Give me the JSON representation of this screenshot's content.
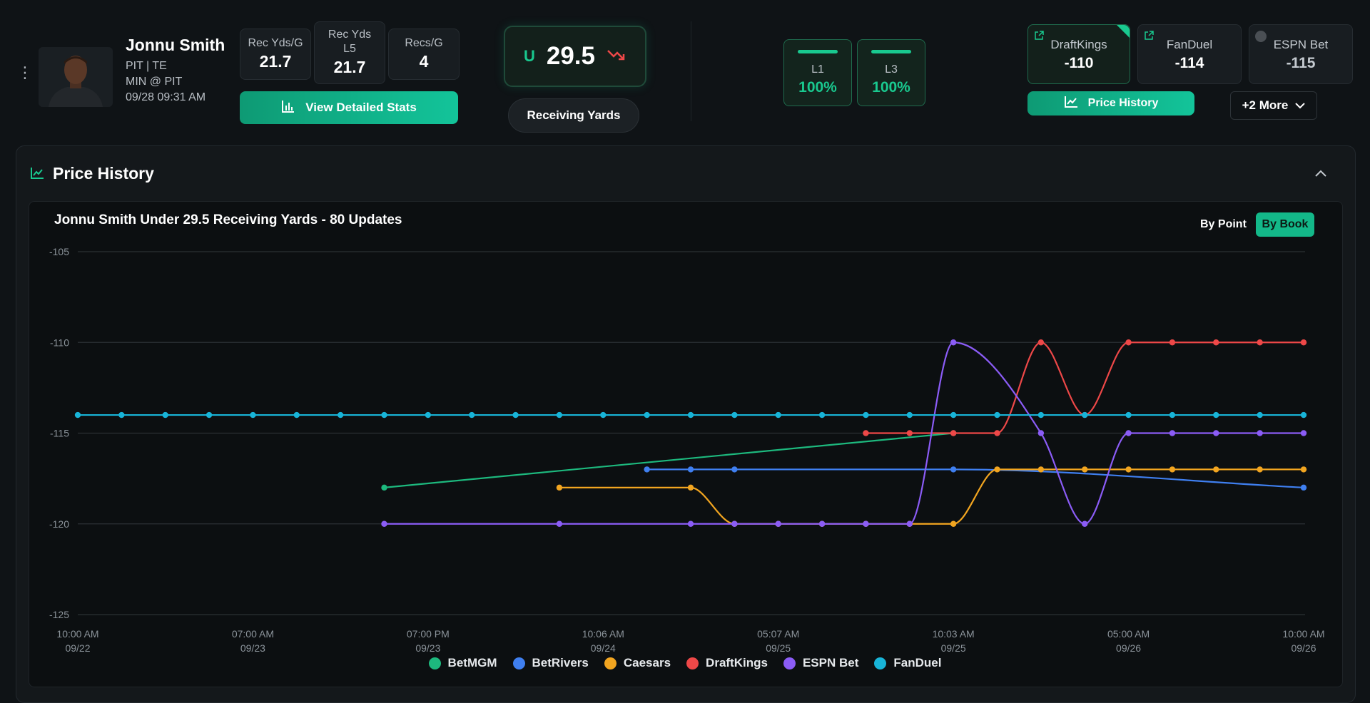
{
  "player": {
    "name": "Jonnu Smith",
    "team_pos": "PIT | TE",
    "matchup": "MIN @ PIT",
    "datetime": "09/28 09:31 AM"
  },
  "stats": [
    {
      "label_line1": "Rec Yds/G",
      "label_line2": "",
      "value": "21.7"
    },
    {
      "label_line1": "Rec Yds",
      "label_line2": "L5",
      "value": "21.7"
    },
    {
      "label_line1": "Recs/G",
      "label_line2": "",
      "value": "4"
    }
  ],
  "buttons": {
    "view_stats": "View Detailed Stats",
    "price_history": "Price History",
    "more": "+2 More"
  },
  "line": {
    "side": "U",
    "value": "29.5",
    "market": "Receiving Yards"
  },
  "hit_rates": [
    {
      "label": "L1",
      "value": "100%"
    },
    {
      "label": "L3",
      "value": "100%"
    }
  ],
  "books": [
    {
      "name": "DraftKings",
      "odds": "-110"
    },
    {
      "name": "FanDuel",
      "odds": "-114"
    },
    {
      "name": "ESPN Bet",
      "odds": "-115"
    }
  ],
  "panel": {
    "title": "Price History"
  },
  "toggle": {
    "by_point": "By Point",
    "by_book": "By Book"
  },
  "colors": {
    "accent": "#13c49a",
    "BetMGM": "#1db97e",
    "BetRivers": "#3f7ff0",
    "Caesars": "#f2a520",
    "DraftKings": "#ee4848",
    "ESPN Bet": "#8b5cf6",
    "FanDuel": "#18b4d8"
  },
  "icons": [
    "kebab-menu-icon",
    "bar-chart-icon",
    "line-chart-icon",
    "trend-down-icon",
    "external-link-icon",
    "chevron-down-icon",
    "chevron-up-icon"
  ],
  "chart_data": {
    "type": "line",
    "title": "Jonnu Smith Under 29.5 Receiving Yards - 80 Updates",
    "xlabel": "",
    "ylabel": "",
    "ylim": [
      -125,
      -105
    ],
    "yticks": [
      -105,
      -110,
      -115,
      -120,
      -125
    ],
    "x_ticks": [
      {
        "i": 0,
        "time": "10:00 AM",
        "date": "09/22"
      },
      {
        "i": 4,
        "time": "07:00 AM",
        "date": "09/23"
      },
      {
        "i": 8,
        "time": "07:00 PM",
        "date": "09/23"
      },
      {
        "i": 12,
        "time": "10:06 AM",
        "date": "09/24"
      },
      {
        "i": 16,
        "time": "05:07 AM",
        "date": "09/25"
      },
      {
        "i": 20,
        "time": "10:03 AM",
        "date": "09/25"
      },
      {
        "i": 24,
        "time": "05:00 AM",
        "date": "09/26"
      },
      {
        "i": 28,
        "time": "10:00 AM",
        "date": "09/26"
      }
    ],
    "grid": true,
    "legend_position": "bottom",
    "series": [
      {
        "name": "BetMGM",
        "points": [
          [
            7,
            -118
          ],
          [
            20,
            -115
          ]
        ]
      },
      {
        "name": "BetRivers",
        "points": [
          [
            13,
            -117
          ],
          [
            14,
            -117
          ],
          [
            15,
            -117
          ],
          [
            20,
            -117
          ],
          [
            28,
            -118
          ]
        ]
      },
      {
        "name": "Caesars",
        "points": [
          [
            11,
            -118
          ],
          [
            14,
            -118
          ],
          [
            15,
            -120
          ],
          [
            16,
            -120
          ],
          [
            17,
            -120
          ],
          [
            18,
            -120
          ],
          [
            19,
            -120
          ],
          [
            20,
            -120
          ],
          [
            21,
            -117
          ],
          [
            22,
            -117
          ],
          [
            23,
            -117
          ],
          [
            24,
            -117
          ],
          [
            25,
            -117
          ],
          [
            26,
            -117
          ],
          [
            27,
            -117
          ],
          [
            28,
            -117
          ]
        ]
      },
      {
        "name": "DraftKings",
        "points": [
          [
            18,
            -115
          ],
          [
            19,
            -115
          ],
          [
            20,
            -115
          ],
          [
            21,
            -115
          ],
          [
            22,
            -110
          ],
          [
            23,
            -114
          ],
          [
            24,
            -110
          ],
          [
            25,
            -110
          ],
          [
            26,
            -110
          ],
          [
            27,
            -110
          ],
          [
            28,
            -110
          ]
        ]
      },
      {
        "name": "ESPN Bet",
        "points": [
          [
            7,
            -120
          ],
          [
            11,
            -120
          ],
          [
            14,
            -120
          ],
          [
            15,
            -120
          ],
          [
            16,
            -120
          ],
          [
            17,
            -120
          ],
          [
            18,
            -120
          ],
          [
            19,
            -120
          ],
          [
            20,
            -110
          ],
          [
            22,
            -115
          ],
          [
            23,
            -120
          ],
          [
            24,
            -115
          ],
          [
            25,
            -115
          ],
          [
            26,
            -115
          ],
          [
            27,
            -115
          ],
          [
            28,
            -115
          ]
        ]
      },
      {
        "name": "FanDuel",
        "points": [
          [
            0,
            -114
          ],
          [
            1,
            -114
          ],
          [
            2,
            -114
          ],
          [
            3,
            -114
          ],
          [
            4,
            -114
          ],
          [
            5,
            -114
          ],
          [
            6,
            -114
          ],
          [
            7,
            -114
          ],
          [
            8,
            -114
          ],
          [
            9,
            -114
          ],
          [
            10,
            -114
          ],
          [
            11,
            -114
          ],
          [
            12,
            -114
          ],
          [
            13,
            -114
          ],
          [
            14,
            -114
          ],
          [
            15,
            -114
          ],
          [
            16,
            -114
          ],
          [
            17,
            -114
          ],
          [
            18,
            -114
          ],
          [
            19,
            -114
          ],
          [
            20,
            -114
          ],
          [
            21,
            -114
          ],
          [
            22,
            -114
          ],
          [
            23,
            -114
          ],
          [
            24,
            -114
          ],
          [
            25,
            -114
          ],
          [
            26,
            -114
          ],
          [
            27,
            -114
          ],
          [
            28,
            -114
          ]
        ]
      }
    ]
  }
}
